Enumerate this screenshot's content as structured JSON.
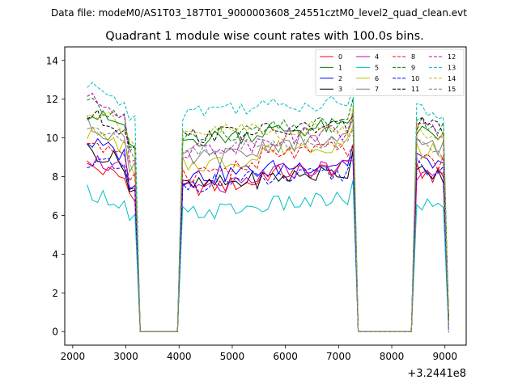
{
  "chart_data": {
    "type": "line",
    "suptitle": "Data file: modeM0/AS1T03_187T01_9000003608_24551cztM0_level2_quad_clean.evt",
    "title": "Quadrant 1 module wise count rates with 100.0s bins.",
    "xlabel": "",
    "ylabel": "",
    "x_offset_label": "+3.2441e8",
    "xlim": [
      1850,
      9400
    ],
    "ylim": [
      -0.7,
      14.7
    ],
    "x_ticks": [
      2000,
      3000,
      4000,
      5000,
      6000,
      7000,
      8000,
      9000
    ],
    "y_ticks": [
      0,
      2,
      4,
      6,
      8,
      10,
      12,
      14
    ],
    "grid": false,
    "legend_position": "top-right",
    "legend_columns": 4,
    "series": [
      {
        "name": "0",
        "color": "#ff0000",
        "dash": "solid",
        "level_a": 8.6,
        "level_b": 7.4,
        "level_c": 8.1,
        "level_d": 8.0
      },
      {
        "name": "1",
        "color": "#008000",
        "dash": "solid",
        "level_a": 11.3,
        "level_b": 9.9,
        "level_c": 10.3,
        "level_d": 10.1
      },
      {
        "name": "2",
        "color": "#0000ff",
        "dash": "solid",
        "level_a": 9.8,
        "level_b": 8.0,
        "level_c": 8.4,
        "level_d": 8.5
      },
      {
        "name": "3",
        "color": "#000000",
        "dash": "solid",
        "level_a": 9.4,
        "level_b": 7.5,
        "level_c": 7.9,
        "level_d": 8.0
      },
      {
        "name": "4",
        "color": "#bf00bf",
        "dash": "solid",
        "level_a": 9.0,
        "level_b": 7.3,
        "level_c": 8.2,
        "level_d": 7.8
      },
      {
        "name": "5",
        "color": "#00bfbf",
        "dash": "solid",
        "level_a": 7.3,
        "level_b": 6.1,
        "level_c": 6.5,
        "level_d": 6.4
      },
      {
        "name": "6",
        "color": "#bfbf00",
        "dash": "solid",
        "level_a": 10.3,
        "level_b": 8.6,
        "level_c": 9.4,
        "level_d": 9.2
      },
      {
        "name": "7",
        "color": "#808080",
        "dash": "solid",
        "level_a": 10.7,
        "level_b": 8.9,
        "level_c": 9.6,
        "level_d": 9.5
      },
      {
        "name": "8",
        "color": "#ff0000",
        "dash": "dashed",
        "level_a": 9.9,
        "level_b": 8.2,
        "level_c": 9.1,
        "level_d": 8.7
      },
      {
        "name": "9",
        "color": "#008000",
        "dash": "dashed",
        "level_a": 11.7,
        "level_b": 10.0,
        "level_c": 10.4,
        "level_d": 10.5
      },
      {
        "name": "10",
        "color": "#0000ff",
        "dash": "dashed",
        "level_a": 8.9,
        "level_b": 7.6,
        "level_c": 7.8,
        "level_d": 8.2
      },
      {
        "name": "11",
        "color": "#000000",
        "dash": "dashed",
        "level_a": 11.2,
        "level_b": 10.1,
        "level_c": 10.3,
        "level_d": 10.4
      },
      {
        "name": "12",
        "color": "#bf00bf",
        "dash": "dashed",
        "level_a": 12.0,
        "level_b": 9.4,
        "level_c": 10.0,
        "level_d": 10.3
      },
      {
        "name": "13",
        "color": "#00bfbf",
        "dash": "dashed",
        "level_a": 12.6,
        "level_b": 11.4,
        "level_c": 11.6,
        "level_d": 11.2
      },
      {
        "name": "14",
        "color": "#bfbf00",
        "dash": "dashed",
        "level_a": 11.5,
        "level_b": 10.2,
        "level_c": 10.2,
        "level_d": 10.2
      },
      {
        "name": "15",
        "color": "#808080",
        "dash": "dashed",
        "level_a": 10.6,
        "level_b": 9.3,
        "level_c": 9.6,
        "level_d": 9.3
      }
    ]
  }
}
